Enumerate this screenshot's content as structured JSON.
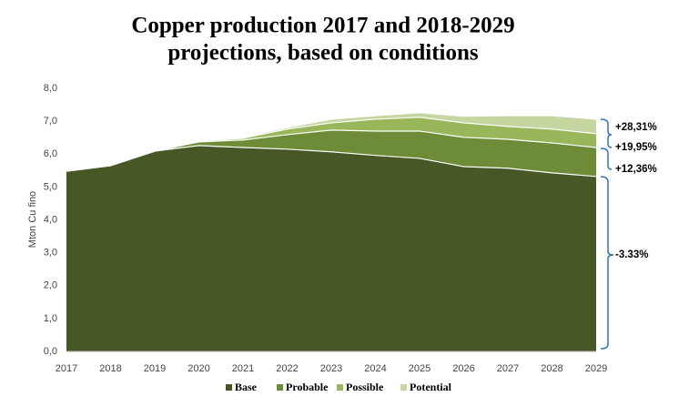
{
  "chart_data": {
    "type": "stacked-area",
    "title": [
      "Copper production 2017 and 2018-2029",
      "projections, based on conditions"
    ],
    "y_label": "Mton Cu fino",
    "x": [
      2017,
      2018,
      2019,
      2020,
      2021,
      2022,
      2023,
      2024,
      2025,
      2026,
      2027,
      2028,
      2029
    ],
    "xlim": [
      2017,
      2029
    ],
    "xticks": [
      2017,
      2018,
      2019,
      2020,
      2021,
      2022,
      2023,
      2024,
      2025,
      2026,
      2027,
      2028,
      2029
    ],
    "ylim": [
      0,
      8
    ],
    "yticks": [
      {
        "value": 0,
        "label": "0,0"
      },
      {
        "value": 1,
        "label": "1,0"
      },
      {
        "value": 2,
        "label": "2,0"
      },
      {
        "value": 3,
        "label": "3,0"
      },
      {
        "value": 4,
        "label": "4,0"
      },
      {
        "value": 5,
        "label": "5,0"
      },
      {
        "value": 6,
        "label": "6,0"
      },
      {
        "value": 7,
        "label": "7,0"
      },
      {
        "value": 8,
        "label": "8,0"
      }
    ],
    "series": [
      {
        "name": "Base",
        "color": "#475726",
        "values": [
          5.48,
          5.65,
          6.09,
          6.26,
          6.2,
          6.15,
          6.07,
          5.96,
          5.87,
          5.62,
          5.57,
          5.43,
          5.32
        ]
      },
      {
        "name": "Probable",
        "color": "#6e8b37",
        "values": [
          0,
          0,
          0,
          0.11,
          0.23,
          0.44,
          0.66,
          0.74,
          0.83,
          0.89,
          0.88,
          0.91,
          0.88
        ]
      },
      {
        "name": "Possible",
        "color": "#9ab65a",
        "values": [
          0,
          0,
          0,
          0.03,
          0.05,
          0.17,
          0.22,
          0.36,
          0.42,
          0.44,
          0.39,
          0.42,
          0.42
        ]
      },
      {
        "name": "Potential",
        "color": "#c5d6a0",
        "values": [
          0,
          0,
          0,
          0,
          0.03,
          0.05,
          0.11,
          0.11,
          0.14,
          0.2,
          0.33,
          0.41,
          0.44
        ]
      }
    ],
    "annotations": [
      "+28,31%",
      "+19,95%",
      "+12,36%",
      "-3.33%"
    ]
  }
}
